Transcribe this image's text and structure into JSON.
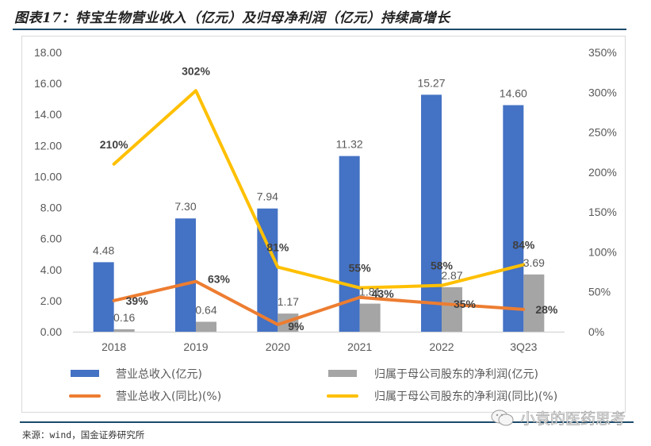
{
  "title": "图表17：特宝生物营业收入（亿元）及归母净利润（亿元）持续高增长",
  "source": "来源：wind，国金证券研究所",
  "watermark": "小袁的医药思考",
  "colors": {
    "revenue": "#4472c4",
    "net_profit": "#a5a5a5",
    "revenue_yoy": "#ed7d31",
    "net_profit_yoy": "#ffc000",
    "rule": "#1c4a6b"
  },
  "chart_data": {
    "type": "bar",
    "title": "特宝生物营业收入（亿元）及归母净利润（亿元）持续高增长",
    "categories": [
      "2018",
      "2019",
      "2020",
      "2021",
      "2022",
      "3Q23"
    ],
    "y_left": {
      "ylim": [
        0,
        18
      ],
      "ticks": [
        "0.00",
        "2.00",
        "4.00",
        "6.00",
        "8.00",
        "10.00",
        "12.00",
        "14.00",
        "16.00",
        "18.00"
      ]
    },
    "y_right": {
      "ylim": [
        0,
        350
      ],
      "ticks": [
        "0%",
        "50%",
        "100%",
        "150%",
        "200%",
        "250%",
        "300%",
        "350%"
      ]
    },
    "grid": false,
    "legend_position": "bottom",
    "series": [
      {
        "name": "营业总收入(亿元)",
        "kind": "bar",
        "axis": "left",
        "values": [
          4.48,
          7.3,
          7.94,
          11.32,
          15.27,
          14.6
        ],
        "labels": [
          "4.48",
          "7.30",
          "7.94",
          "11.32",
          "15.27",
          "14.60"
        ]
      },
      {
        "name": "归属于母公司股东的净利润(亿元)",
        "kind": "bar",
        "axis": "left",
        "values": [
          0.16,
          0.64,
          1.17,
          1.81,
          2.87,
          3.69
        ],
        "labels": [
          "0.16",
          "0.64",
          "1.17",
          "1.81",
          "2.87",
          "3.69"
        ]
      },
      {
        "name": "营业总收入(同比)(%)",
        "kind": "line",
        "axis": "right",
        "values": [
          39,
          63,
          9,
          43,
          35,
          28
        ],
        "labels": [
          "39%",
          "63%",
          "9%",
          "43%",
          "35%",
          "28%"
        ]
      },
      {
        "name": "归属于母公司股东的净利润(同比)(%)",
        "kind": "line",
        "axis": "right",
        "values": [
          210,
          302,
          81,
          55,
          58,
          84
        ],
        "labels": [
          "210%",
          "302%",
          "81%",
          "55%",
          "58%",
          "84%"
        ]
      }
    ]
  }
}
